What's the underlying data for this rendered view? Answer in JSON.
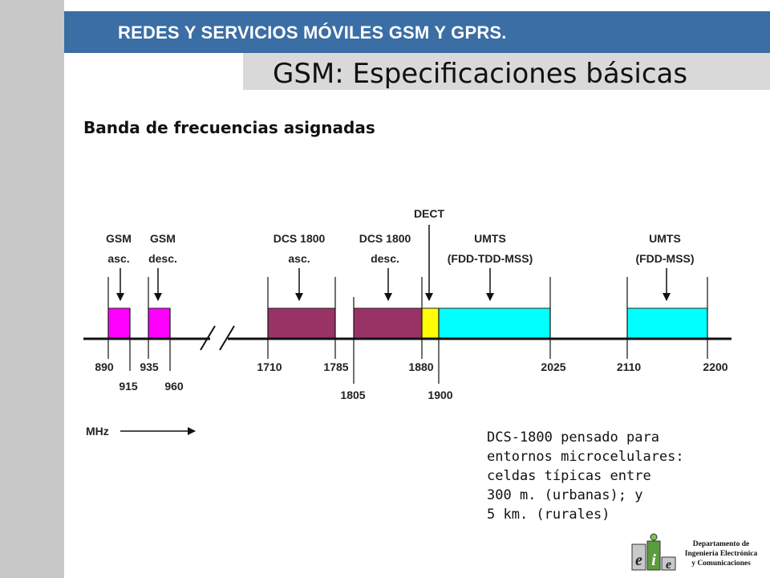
{
  "header": {
    "banner_title": "REDES Y SERVICIOS MÓVILES GSM Y GPRS.",
    "slide_title": "GSM: Especificaciones básicas",
    "section_heading": "Banda de frecuencias asignadas"
  },
  "bands": [
    {
      "name": "gsm-asc",
      "label_lines": [
        "GSM",
        "asc."
      ],
      "range_mhz": [
        890,
        915
      ],
      "color": "#ff00ff"
    },
    {
      "name": "gsm-desc",
      "label_lines": [
        "GSM",
        "desc."
      ],
      "range_mhz": [
        935,
        960
      ],
      "color": "#ff00ff"
    },
    {
      "name": "dcs-asc",
      "label_lines": [
        "DCS 1800",
        "asc."
      ],
      "range_mhz": [
        1710,
        1785
      ],
      "color": "#993366"
    },
    {
      "name": "dcs-desc",
      "label_lines": [
        "DCS 1800",
        "desc."
      ],
      "range_mhz": [
        1805,
        1880
      ],
      "color": "#993366"
    },
    {
      "name": "dect",
      "label_lines": [
        "DECT"
      ],
      "range_mhz": [
        1880,
        1900
      ],
      "color": "#ffff00"
    },
    {
      "name": "umts-fdd-tdd-mss",
      "label_lines": [
        "UMTS",
        "(FDD-TDD-MSS)"
      ],
      "range_mhz": [
        1900,
        2025
      ],
      "color": "#00ffff"
    },
    {
      "name": "umts-fdd-mss",
      "label_lines": [
        "UMTS",
        "(FDD-MSS)"
      ],
      "range_mhz": [
        2110,
        2200
      ],
      "color": "#00ffff"
    }
  ],
  "ticks_upper": [
    "890",
    "935",
    "1710",
    "1785",
    "1880",
    "2025",
    "2110",
    "2200"
  ],
  "ticks_lower": [
    "915",
    "960",
    "1805",
    "1900"
  ],
  "unit_label": "MHz",
  "note": [
    "DCS-1800 pensado para",
    "entornos microcelulares:",
    "celdas típicas entre",
    "300 m. (urbanas); y",
    "5 km. (rurales)"
  ],
  "department": [
    "Departamento de",
    "Ingeniería Electrónica",
    "y Comunicaciones"
  ],
  "logo_letters": [
    "e",
    "i",
    "e"
  ]
}
